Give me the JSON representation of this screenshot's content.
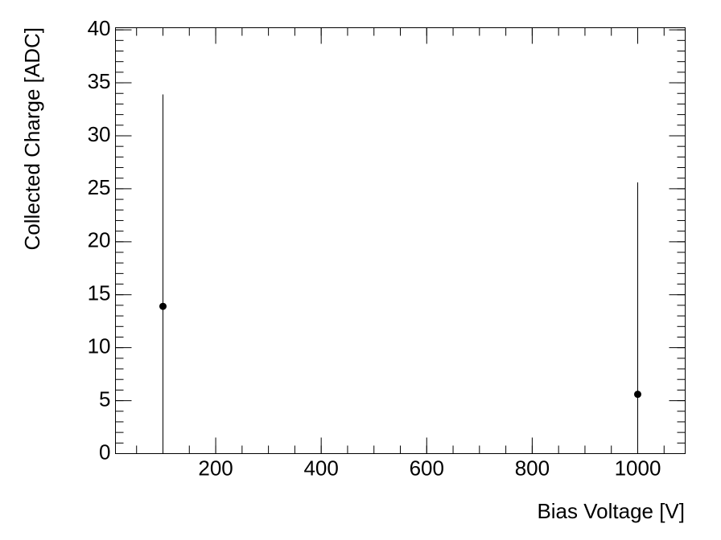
{
  "chart_data": {
    "type": "errorbar",
    "x_label": "Bias Voltage [V]",
    "y_label": "Collected Charge [ADC]",
    "series": [
      {
        "color": "#000000",
        "x": [
          100,
          1000
        ],
        "values": [
          13.9,
          5.6
        ],
        "errors": [
          20,
          20
        ]
      }
    ],
    "xlim": [
      10,
      1090
    ],
    "ylim": [
      0,
      40.2
    ],
    "xticks": [
      200,
      400,
      600,
      800,
      1000
    ],
    "yticks": [
      0,
      5,
      10,
      15,
      20,
      25,
      30,
      35,
      40
    ]
  }
}
